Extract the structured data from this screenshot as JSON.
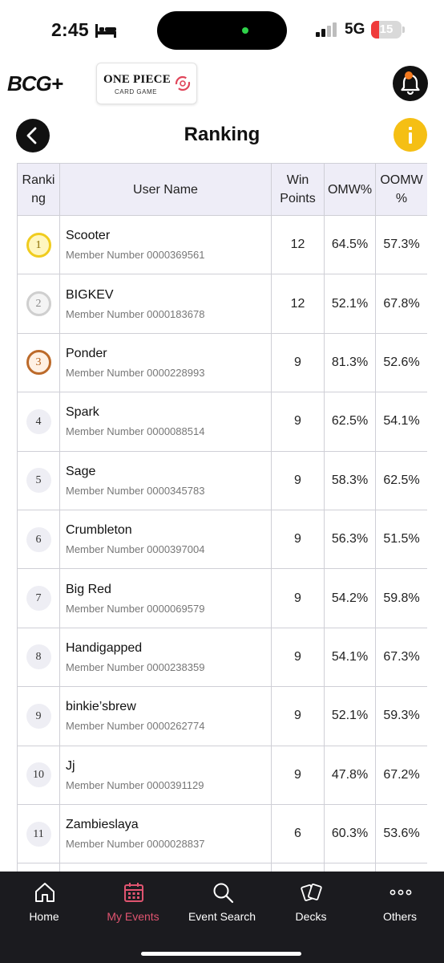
{
  "status_bar": {
    "time": "2:45",
    "network": "5G",
    "battery": "15",
    "battery_level": 0.15,
    "colors": {
      "battery_low": "#ef3b3b",
      "island_dot": "#2fd24a"
    }
  },
  "header": {
    "app_logo": "BCG+",
    "game_logo": "ONE PIECE",
    "game_logo_sub": "CARD GAME"
  },
  "title_bar": {
    "title": "Ranking",
    "info_label": "i"
  },
  "table": {
    "columns": {
      "rank": "Ranki ng",
      "user": "User Name",
      "win": "Win Points",
      "omw": "OMW%",
      "oomw": "OOMW %"
    },
    "rows": [
      {
        "rank": "1",
        "name": "Scooter",
        "member": "Member Number 0000369561",
        "win_points": "12",
        "omw": "64.5%",
        "oomw": "57.3%"
      },
      {
        "rank": "2",
        "name": "BIGKEV",
        "member": "Member Number 0000183678",
        "win_points": "12",
        "omw": "52.1%",
        "oomw": "67.8%"
      },
      {
        "rank": "3",
        "name": "Ponder",
        "member": "Member Number 0000228993",
        "win_points": "9",
        "omw": "81.3%",
        "oomw": "52.6%"
      },
      {
        "rank": "4",
        "name": "Spark",
        "member": "Member Number 0000088514",
        "win_points": "9",
        "omw": "62.5%",
        "oomw": "54.1%"
      },
      {
        "rank": "5",
        "name": "Sage",
        "member": "Member Number 0000345783",
        "win_points": "9",
        "omw": "58.3%",
        "oomw": "62.5%"
      },
      {
        "rank": "6",
        "name": "Crumbleton",
        "member": "Member Number 0000397004",
        "win_points": "9",
        "omw": "56.3%",
        "oomw": "51.5%"
      },
      {
        "rank": "7",
        "name": "Big Red",
        "member": "Member Number 0000069579",
        "win_points": "9",
        "omw": "54.2%",
        "oomw": "59.8%"
      },
      {
        "rank": "8",
        "name": "Handigapped",
        "member": "Member Number 0000238359",
        "win_points": "9",
        "omw": "54.1%",
        "oomw": "67.3%"
      },
      {
        "rank": "9",
        "name": "binkie’sbrew",
        "member": "Member Number 0000262774",
        "win_points": "9",
        "omw": "52.1%",
        "oomw": "59.3%"
      },
      {
        "rank": "10",
        "name": "Jj",
        "member": "Member Number 0000391129",
        "win_points": "9",
        "omw": "47.8%",
        "oomw": "67.2%"
      },
      {
        "rank": "11",
        "name": "Zambieslaya",
        "member": "Member Number 0000028837",
        "win_points": "6",
        "omw": "60.3%",
        "oomw": "53.6%"
      }
    ]
  },
  "bottom_nav": {
    "items": [
      {
        "label": "Home",
        "icon": "home-icon"
      },
      {
        "label": "My Events",
        "icon": "calendar-icon",
        "active": true
      },
      {
        "label": "Event Search",
        "icon": "search-icon"
      },
      {
        "label": "Decks",
        "icon": "cards-icon"
      },
      {
        "label": "Others",
        "icon": "more-icon"
      }
    ],
    "active_color": "#e05470"
  }
}
